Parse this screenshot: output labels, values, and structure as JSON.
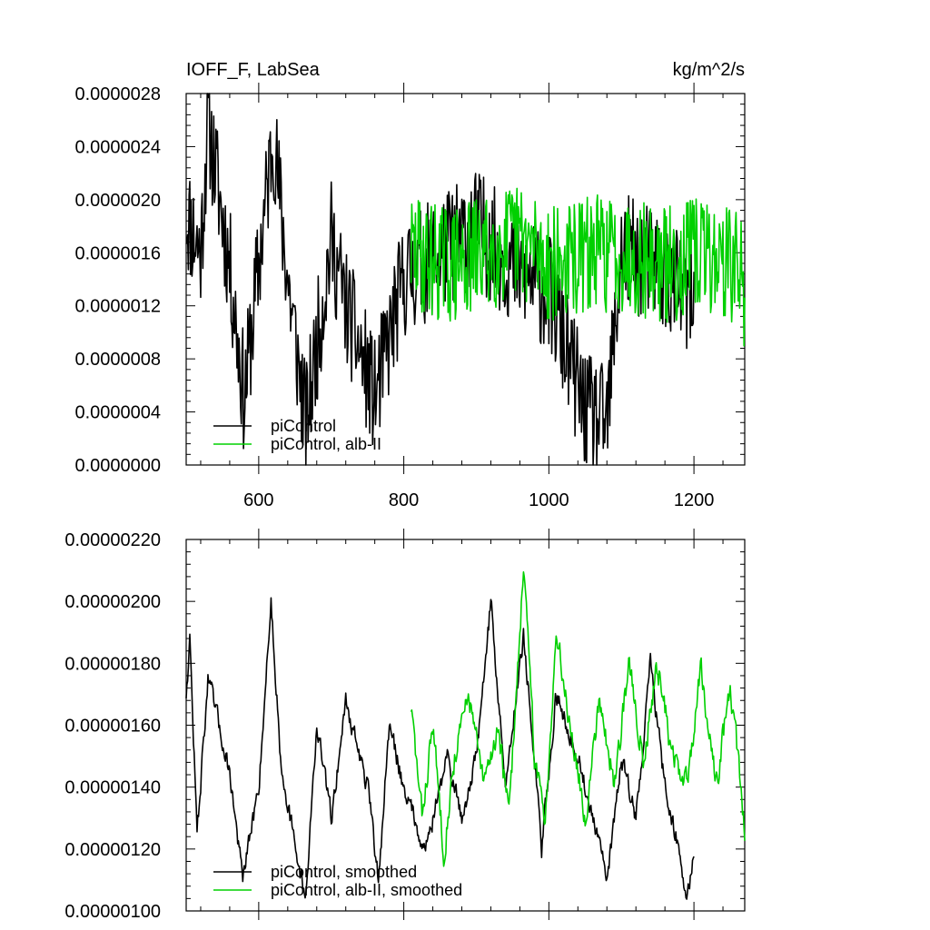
{
  "chart_data": [
    {
      "type": "line",
      "title": "",
      "left_string": "IOFF_F, LabSea",
      "right_string": "kg/m^2/s",
      "xlim": [
        500,
        1270
      ],
      "ylim": [
        0.0,
        2.8e-06
      ],
      "yticks": [
        0.0,
        4e-07,
        8e-07,
        1.2e-06,
        1.6e-06,
        2e-06,
        2.4e-06,
        2.8e-06
      ],
      "ytick_labels": [
        "0.0000000",
        "0.0000004",
        "0.0000008",
        "0.0000012",
        "0.0000016",
        "0.0000020",
        "0.0000024",
        "0.0000028"
      ],
      "xticks": [
        600,
        800,
        1000,
        1200
      ],
      "xtick_labels": [
        "600",
        "800",
        "1000",
        "1200"
      ],
      "grid": false,
      "legend_position": "bottom-left",
      "series": [
        {
          "name": "piControl",
          "color": "#000000",
          "x_start": 500,
          "x_end": 1200,
          "anchors": [
            [
              500,
              1.9e-06
            ],
            [
              520,
              1.6e-06
            ],
            [
              530,
              2.6e-06
            ],
            [
              560,
              1.5e-06
            ],
            [
              580,
              5e-07
            ],
            [
              600,
              1.5e-06
            ],
            [
              620,
              2.5e-06
            ],
            [
              640,
              1.4e-06
            ],
            [
              665,
              3e-07
            ],
            [
              700,
              1.7e-06
            ],
            [
              720,
              1.2e-06
            ],
            [
              760,
              5e-07
            ],
            [
              800,
              1.4e-06
            ],
            [
              850,
              1.6e-06
            ],
            [
              900,
              1.8e-06
            ],
            [
              950,
              1.5e-06
            ],
            [
              1000,
              1.3e-06
            ],
            [
              1050,
              4e-07
            ],
            [
              1080,
              3e-07
            ],
            [
              1100,
              1.6e-06
            ],
            [
              1150,
              1.5e-06
            ],
            [
              1200,
              1.2e-06
            ]
          ],
          "amplitude": 4.5e-07,
          "seed": 11
        },
        {
          "name": "piControl, alb-II",
          "color": "#00d000",
          "x_start": 810,
          "x_end": 1270,
          "anchors": [
            [
              810,
              1.6e-06
            ],
            [
              870,
              1.5e-06
            ],
            [
              910,
              1.6e-06
            ],
            [
              960,
              1.7e-06
            ],
            [
              1010,
              1.5e-06
            ],
            [
              1060,
              1.6e-06
            ],
            [
              1110,
              1.6e-06
            ],
            [
              1160,
              1.5e-06
            ],
            [
              1210,
              1.6e-06
            ],
            [
              1260,
              1.5e-06
            ],
            [
              1270,
              1.3e-06
            ]
          ],
          "amplitude": 4.5e-07,
          "seed": 29
        }
      ]
    },
    {
      "type": "line",
      "title": "",
      "xlim": [
        500,
        1270
      ],
      "ylim": [
        1e-06,
        2.2e-06
      ],
      "yticks": [
        1e-06,
        1.2e-06,
        1.4e-06,
        1.6e-06,
        1.8e-06,
        2e-06,
        2.2e-06
      ],
      "ytick_labels": [
        "0.00000100",
        "0.00000120",
        "0.00000140",
        "0.00000160",
        "0.00000180",
        "0.00000200",
        "0.00000220"
      ],
      "xticks": [
        600,
        800,
        1000,
        1200
      ],
      "grid": false,
      "legend_position": "bottom-left",
      "series": [
        {
          "name": "piControl, smoothed",
          "color": "#000000",
          "x_start": 500,
          "x_end": 1200,
          "anchors": [
            [
              500,
              1.7e-06
            ],
            [
              505,
              1.88e-06
            ],
            [
              515,
              1.25e-06
            ],
            [
              530,
              1.75e-06
            ],
            [
              560,
              1.45e-06
            ],
            [
              578,
              1.1e-06
            ],
            [
              600,
              1.4e-06
            ],
            [
              617,
              2e-06
            ],
            [
              630,
              1.5e-06
            ],
            [
              650,
              1.2e-06
            ],
            [
              665,
              1.05e-06
            ],
            [
              680,
              1.6e-06
            ],
            [
              700,
              1.3e-06
            ],
            [
              720,
              1.68e-06
            ],
            [
              750,
              1.4e-06
            ],
            [
              765,
              1.1e-06
            ],
            [
              780,
              1.6e-06
            ],
            [
              800,
              1.4e-06
            ],
            [
              830,
              1.2e-06
            ],
            [
              860,
              1.5e-06
            ],
            [
              880,
              1.3e-06
            ],
            [
              900,
              1.5e-06
            ],
            [
              920,
              2e-06
            ],
            [
              940,
              1.4e-06
            ],
            [
              965,
              1.9e-06
            ],
            [
              990,
              1.2e-06
            ],
            [
              1010,
              1.7e-06
            ],
            [
              1040,
              1.5e-06
            ],
            [
              1060,
              1.3e-06
            ],
            [
              1080,
              1.1e-06
            ],
            [
              1100,
              1.5e-06
            ],
            [
              1120,
              1.3e-06
            ],
            [
              1140,
              1.8e-06
            ],
            [
              1160,
              1.4e-06
            ],
            [
              1180,
              1.2e-06
            ],
            [
              1190,
              1.02e-06
            ],
            [
              1200,
              1.2e-06
            ]
          ],
          "amplitude": 6e-08,
          "seed": 47
        },
        {
          "name": "piControl, alb-II, smoothed",
          "color": "#00d000",
          "x_start": 810,
          "x_end": 1270,
          "anchors": [
            [
              810,
              1.66e-06
            ],
            [
              825,
              1.3e-06
            ],
            [
              840,
              1.6e-06
            ],
            [
              855,
              1.2e-06
            ],
            [
              870,
              1.5e-06
            ],
            [
              890,
              1.7e-06
            ],
            [
              910,
              1.4e-06
            ],
            [
              930,
              1.6e-06
            ],
            [
              945,
              1.3e-06
            ],
            [
              965,
              2.12e-06
            ],
            [
              980,
              1.5e-06
            ],
            [
              995,
              1.3e-06
            ],
            [
              1010,
              1.9e-06
            ],
            [
              1030,
              1.6e-06
            ],
            [
              1050,
              1.3e-06
            ],
            [
              1070,
              1.7e-06
            ],
            [
              1090,
              1.4e-06
            ],
            [
              1110,
              1.8e-06
            ],
            [
              1130,
              1.5e-06
            ],
            [
              1150,
              1.8e-06
            ],
            [
              1170,
              1.5e-06
            ],
            [
              1190,
              1.4e-06
            ],
            [
              1210,
              1.8e-06
            ],
            [
              1230,
              1.4e-06
            ],
            [
              1250,
              1.72e-06
            ],
            [
              1260,
              1.5e-06
            ],
            [
              1270,
              1.25e-06
            ]
          ],
          "amplitude": 8e-08,
          "seed": 83
        }
      ]
    }
  ]
}
